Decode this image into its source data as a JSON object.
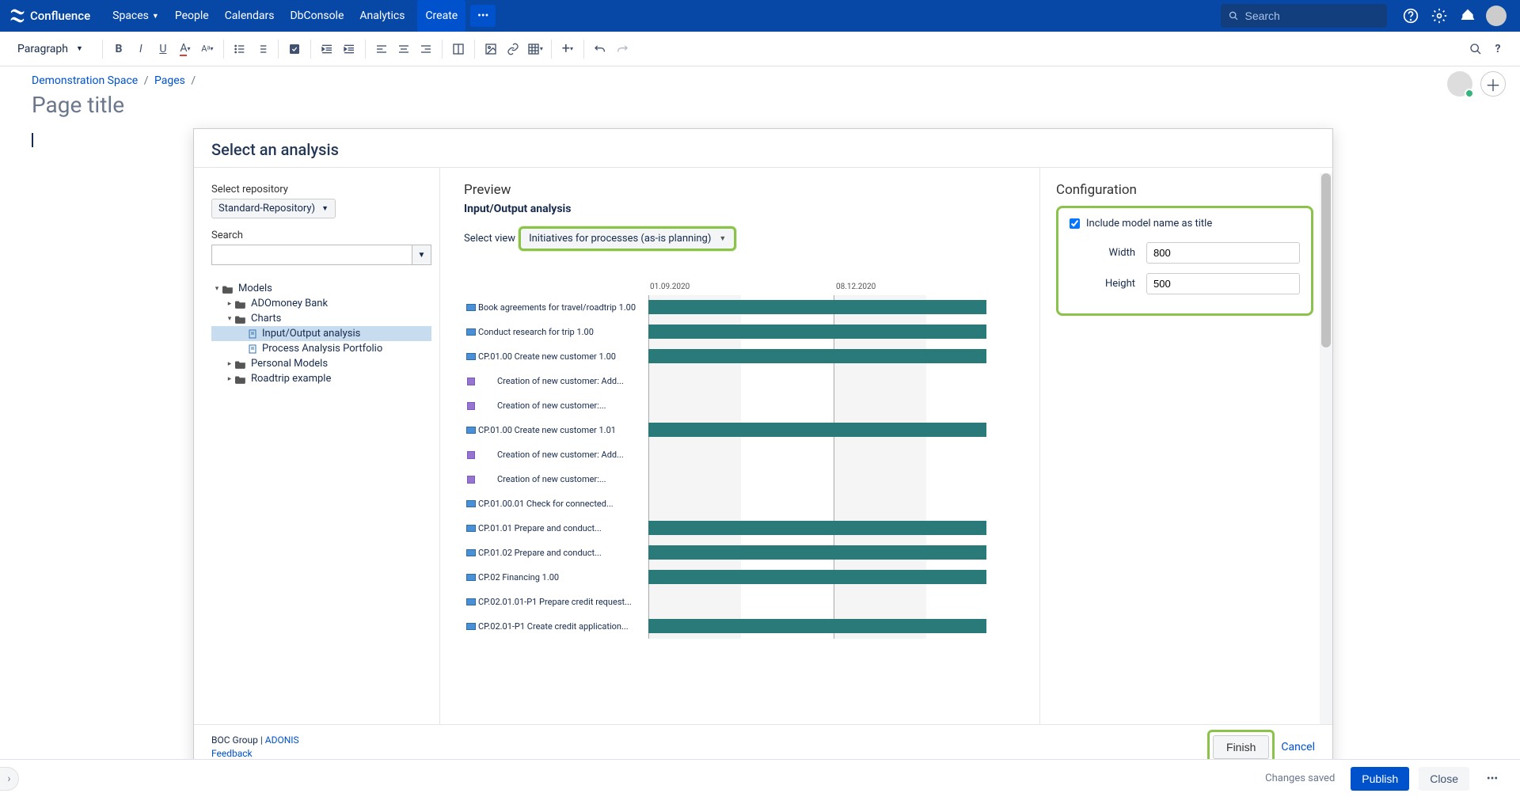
{
  "topnav": {
    "logo": "Confluence",
    "items": [
      "Spaces",
      "People",
      "Calendars",
      "DbConsole",
      "Analytics"
    ],
    "create": "Create",
    "search_placeholder": "Search"
  },
  "toolbar": {
    "paragraph": "Paragraph"
  },
  "breadcrumb": {
    "space": "Demonstration Space",
    "pages": "Pages"
  },
  "page": {
    "title_placeholder": "Page title"
  },
  "modal": {
    "title": "Select an analysis",
    "left": {
      "select_repo_label": "Select repository",
      "repo_value": "Standard-Repository)",
      "search_label": "Search",
      "tree": [
        {
          "label": "Models",
          "type": "folder",
          "indent": 0,
          "expanded": true
        },
        {
          "label": "ADOmoney Bank",
          "type": "folder",
          "indent": 1,
          "expanded": false
        },
        {
          "label": "Charts",
          "type": "folder",
          "indent": 1,
          "expanded": true
        },
        {
          "label": "Input/Output analysis",
          "type": "doc",
          "indent": 2,
          "selected": true
        },
        {
          "label": "Process Analysis Portfolio",
          "type": "doc",
          "indent": 2
        },
        {
          "label": "Personal Models",
          "type": "folder",
          "indent": 1,
          "expanded": false
        },
        {
          "label": "Roadtrip example",
          "type": "folder",
          "indent": 1,
          "expanded": false
        }
      ]
    },
    "mid": {
      "preview": "Preview",
      "subtitle": "Input/Output analysis",
      "view_label": "Select view",
      "view_value": "Initiatives for processes (as-is planning)",
      "dates": [
        "01.09.2020",
        "08.12.2020"
      ],
      "rows": [
        {
          "icon": "blue",
          "label": "Book agreements for travel/roadtrip 1.00",
          "bar": true
        },
        {
          "icon": "blue",
          "label": "Conduct research for trip 1.00",
          "bar": true
        },
        {
          "icon": "blue",
          "label": "CP.01.00 Create new customer 1.00",
          "bar": true
        },
        {
          "icon": "purple",
          "label": "Creation of new customer: Add...",
          "bar": false,
          "indent": true
        },
        {
          "icon": "purple",
          "label": "Creation of new customer:...",
          "bar": false,
          "indent": true
        },
        {
          "icon": "blue",
          "label": "CP.01.00 Create new customer 1.01",
          "bar": true
        },
        {
          "icon": "purple",
          "label": "Creation of new customer: Add...",
          "bar": false,
          "indent": true
        },
        {
          "icon": "purple",
          "label": "Creation of new customer:...",
          "bar": false,
          "indent": true
        },
        {
          "icon": "blue",
          "label": "CP.01.00.01 Check for connected...",
          "bar": false
        },
        {
          "icon": "blue",
          "label": "CP.01.01 Prepare and conduct...",
          "bar": true
        },
        {
          "icon": "blue",
          "label": "CP.01.02 Prepare and conduct...",
          "bar": true
        },
        {
          "icon": "blue",
          "label": "CP.02 Financing 1.00",
          "bar": true
        },
        {
          "icon": "blue",
          "label": "CP.02.01.01-P1 Prepare credit request...",
          "bar": false
        },
        {
          "icon": "blue",
          "label": "CP.02.01-P1 Create credit application...",
          "bar": true
        }
      ],
      "bar_color": "#2a7a7a"
    },
    "right": {
      "title": "Configuration",
      "include_label": "Include model name as title",
      "include_checked": true,
      "width_label": "Width",
      "width_value": "800",
      "height_label": "Height",
      "height_value": "500"
    },
    "footer": {
      "company": "BOC Group",
      "product": "ADONIS",
      "feedback": "Feedback",
      "finish": "Finish",
      "cancel": "Cancel"
    }
  },
  "bottom": {
    "status": "Changes saved",
    "publish": "Publish",
    "close": "Close"
  }
}
